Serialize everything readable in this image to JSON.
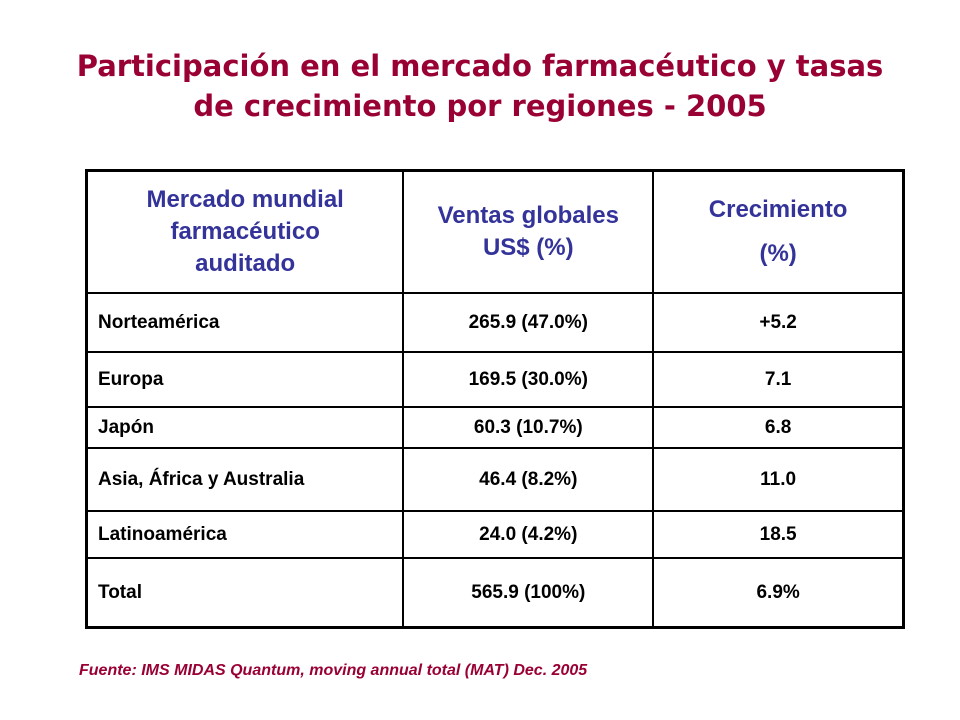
{
  "title": {
    "line1": "Participación en el mercado farmacéutico y tasas",
    "line2": "de crecimiento por regiones - 2005"
  },
  "table": {
    "headers": {
      "market": [
        "Mercado mundial",
        "farmacéutico",
        "auditado"
      ],
      "sales": [
        "Ventas globales",
        "US$ (%)"
      ],
      "growth": [
        "Crecimiento",
        "(%)"
      ]
    },
    "rows": [
      {
        "region": "Norteamérica",
        "sales": "265.9 (47.0%)",
        "growth": "+5.2"
      },
      {
        "region": "Europa",
        "sales": "169.5 (30.0%)",
        "growth": "7.1"
      },
      {
        "region": "Japón",
        "sales": "60.3 (10.7%)",
        "growth": "6.8"
      },
      {
        "region": "Asia, África y Australia",
        "sales": "46.4 (8.2%)",
        "growth": "11.0"
      },
      {
        "region": "Latinoamérica",
        "sales": "24.0 (4.2%)",
        "growth": "18.5"
      },
      {
        "region": "Total",
        "sales": "565.9 (100%)",
        "growth": "6.9%"
      }
    ]
  },
  "source": "Fuente: IMS MIDAS Quantum, moving annual total (MAT) Dec. 2005",
  "colors": {
    "title": "#990033",
    "header_text": "#333399",
    "body_text": "#000000",
    "border": "#000000",
    "background": "#ffffff"
  }
}
